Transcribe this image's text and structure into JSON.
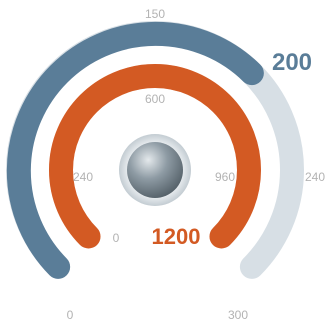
{
  "chart_data": {
    "type": "gauge",
    "gauges": [
      {
        "name": "",
        "min": 0,
        "max": 300,
        "value": 200,
        "value_label": "200",
        "color": "#5a7d98",
        "track_color": "#d7dfe5",
        "tick_labels": [
          {
            "value": 0,
            "label": "0"
          },
          {
            "value": 150,
            "label": "150"
          },
          {
            "value": 240,
            "label": "240"
          },
          {
            "value": 300,
            "label": "300"
          }
        ]
      },
      {
        "name": "",
        "min": 0,
        "max": 1200,
        "value": 1200,
        "value_label": "1200",
        "color": "#d35a23",
        "track_color": "#f3d6c8",
        "tick_labels": [
          {
            "value": 0,
            "label": "0"
          },
          {
            "value": 240,
            "label": "240"
          },
          {
            "value": 600,
            "label": "600"
          },
          {
            "value": 960,
            "label": "960"
          }
        ]
      }
    ]
  }
}
